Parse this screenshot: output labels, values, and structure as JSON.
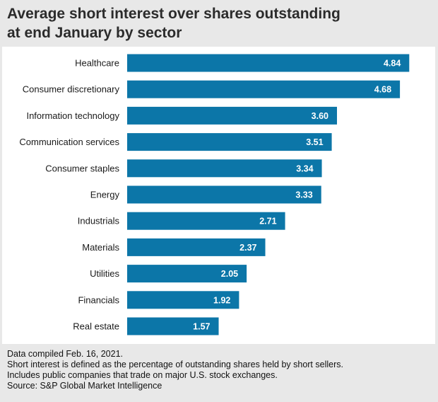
{
  "title_line1": "Average short interest over shares outstanding",
  "title_line2": "at end January by sector",
  "chart_data": {
    "type": "bar",
    "orientation": "horizontal",
    "categories": [
      "Healthcare",
      "Consumer discretionary",
      "Information technology",
      "Communication services",
      "Consumer staples",
      "Energy",
      "Industrials",
      "Materials",
      "Utilities",
      "Financials",
      "Real estate"
    ],
    "values": [
      4.84,
      4.68,
      3.6,
      3.51,
      3.34,
      3.33,
      2.71,
      2.37,
      2.05,
      1.92,
      1.57
    ],
    "value_labels": [
      "4.84",
      "4.68",
      "3.60",
      "3.51",
      "3.34",
      "3.33",
      "2.71",
      "2.37",
      "2.05",
      "1.92",
      "1.57"
    ],
    "bar_color": "#0c76a8",
    "label_color": "#ffffff",
    "xlim": [
      0,
      5
    ]
  },
  "footer": {
    "line1": "Data compiled Feb. 16, 2021.",
    "line2": "Short interest is defined as the percentage of outstanding shares held by short sellers.",
    "line3": "Includes public companies that trade on major U.S. stock exchanges.",
    "line4": "Source: S&P Global Market Intelligence"
  }
}
